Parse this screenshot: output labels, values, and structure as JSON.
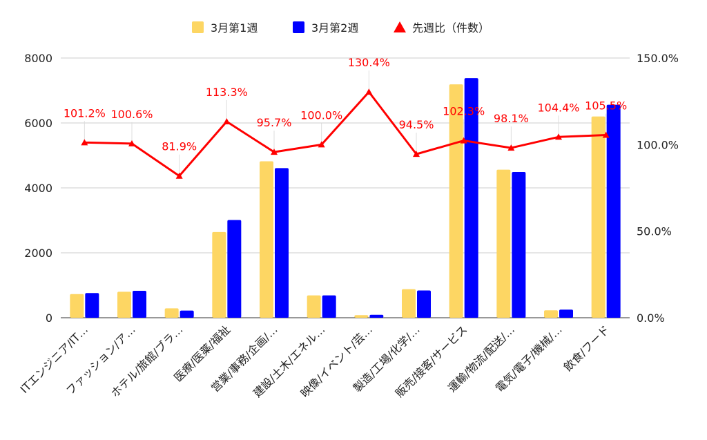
{
  "chart_data": {
    "type": "bar",
    "categories": [
      "ITエンジニア/IT…",
      "ファッション/ア…",
      "ホテル/旅館/ブラ…",
      "医療/医薬/福祉",
      "営業/事務/企画/…",
      "建設/土木/エネル…",
      "映像/イベント/芸…",
      "製造/工場/化学/…",
      "販売/接客/サービス",
      "運輸/物流/配送/…",
      "電気/電子/機械/…",
      "飲食/フード"
    ],
    "series": [
      {
        "name": "3月第1週",
        "type": "bar",
        "axis": "left",
        "color": "#fdd663",
        "values": [
          730,
          800,
          290,
          2640,
          4820,
          690,
          80,
          880,
          7190,
          4560,
          230,
          6200
        ]
      },
      {
        "name": "3月第2週",
        "type": "bar",
        "axis": "left",
        "color": "#0000ff",
        "values": [
          760,
          830,
          220,
          3010,
          4610,
          690,
          90,
          840,
          7380,
          4490,
          250,
          6560
        ]
      },
      {
        "name": "先週比（件数）",
        "type": "line",
        "axis": "right",
        "color": "#ff0000",
        "values": [
          101.2,
          100.6,
          81.9,
          113.3,
          95.7,
          100.0,
          130.4,
          94.5,
          102.3,
          98.1,
          104.4,
          105.5
        ],
        "labels": [
          "101.2%",
          "100.6%",
          "81.9%",
          "113.3%",
          "95.7%",
          "100.0%",
          "130.4%",
          "94.5%",
          "102.3%",
          "98.1%",
          "104.4%",
          "105.5%"
        ]
      }
    ],
    "y_left": {
      "min": 0,
      "max": 8000,
      "ticks": [
        "0",
        "2000",
        "4000",
        "6000",
        "8000"
      ],
      "tick_values": [
        0,
        2000,
        4000,
        6000,
        8000
      ]
    },
    "y_right": {
      "min": 0,
      "max": 150,
      "ticks": [
        "0.0%",
        "50.0%",
        "100.0%",
        "150.0%"
      ],
      "tick_values": [
        0,
        50,
        100,
        150
      ]
    },
    "legend_position": "top",
    "grid": true,
    "title": "",
    "xlabel": "",
    "ylabel": ""
  }
}
